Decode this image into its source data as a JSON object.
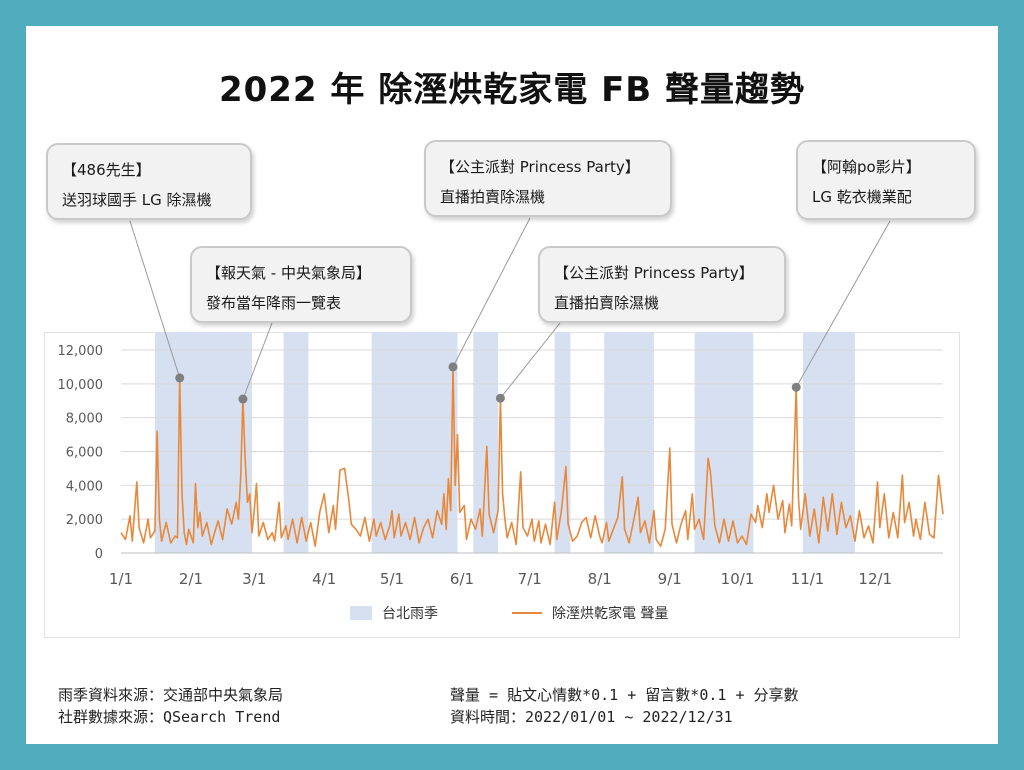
{
  "title": "2022 年 除溼烘乾家電 FB 聲量趨勢",
  "callouts": [
    {
      "line1": "【486先生】",
      "line2": "送羽球國手 LG 除濕機",
      "date": "2022-01-27",
      "value": 10350
    },
    {
      "line1": "【報天氣 - 中央氣象局】",
      "line2": "發布當年降雨一覽表",
      "date": "2022-02-24",
      "value": 9100
    },
    {
      "line1": "【公主派對 Princess Party】",
      "line2": "直播拍賣除濕機",
      "date": "2022-05-28",
      "value": 11000
    },
    {
      "line1": "【公主派對 Princess Party】",
      "line2": "直播拍賣除濕機",
      "date": "2022-06-18",
      "value": 9150
    },
    {
      "line1": "【阿翰po影片】",
      "line2": "LG 乾衣機業配",
      "date": "2022-10-27",
      "value": 9800
    }
  ],
  "legend": {
    "rain": "台北雨季",
    "volume": "除溼烘乾家電 聲量"
  },
  "footer": {
    "left1": "雨季資料來源：交通部中央氣象局",
    "left2": "社群數據來源：QSearch Trend",
    "right1": "聲量 = 貼文心情數*0.1 + 留言數*0.1 + 分享數",
    "right2": "資料時間：2022/01/01 ~ 2022/12/31"
  },
  "colors": {
    "line": "#e8883a",
    "rain": "#d6e0f1",
    "marker": "#7f7f7f",
    "frame": "#4fadbe"
  },
  "chart_data": {
    "type": "line",
    "x_range": [
      "2022-01-01",
      "2022-12-31"
    ],
    "ylim": [
      0,
      12000
    ],
    "y_ticks": [
      0,
      2000,
      4000,
      6000,
      8000,
      10000,
      12000
    ],
    "y_tick_labels": [
      "0",
      "2,000",
      "4,000",
      "6,000",
      "8,000",
      "10,000",
      "12,000"
    ],
    "x_ticks": [
      "2022-01-01",
      "2022-02-01",
      "2022-03-01",
      "2022-04-01",
      "2022-05-01",
      "2022-06-01",
      "2022-07-01",
      "2022-08-01",
      "2022-09-01",
      "2022-10-01",
      "2022-11-01",
      "2022-12-01"
    ],
    "x_tick_labels": [
      "1/1",
      "2/1",
      "3/1",
      "4/1",
      "5/1",
      "6/1",
      "7/1",
      "8/1",
      "9/1",
      "10/1",
      "11/1",
      "12/1"
    ],
    "grid": true,
    "legend_position": "bottom",
    "rain_periods": [
      [
        "2022-01-16",
        "2022-02-28"
      ],
      [
        "2022-03-14",
        "2022-03-25"
      ],
      [
        "2022-04-22",
        "2022-05-30"
      ],
      [
        "2022-06-06",
        "2022-06-17"
      ],
      [
        "2022-07-12",
        "2022-07-19"
      ],
      [
        "2022-08-03",
        "2022-08-25"
      ],
      [
        "2022-09-12",
        "2022-10-08"
      ],
      [
        "2022-10-30",
        "2022-11-22"
      ]
    ],
    "series": [
      {
        "name": "除溼烘乾家電 聲量",
        "points": [
          [
            "2022-01-01",
            1200
          ],
          [
            "2022-01-03",
            800
          ],
          [
            "2022-01-05",
            2200
          ],
          [
            "2022-01-06",
            700
          ],
          [
            "2022-01-08",
            4200
          ],
          [
            "2022-01-09",
            1500
          ],
          [
            "2022-01-11",
            600
          ],
          [
            "2022-01-13",
            2000
          ],
          [
            "2022-01-14",
            900
          ],
          [
            "2022-01-16",
            1300
          ],
          [
            "2022-01-17",
            7200
          ],
          [
            "2022-01-18",
            2000
          ],
          [
            "2022-01-19",
            700
          ],
          [
            "2022-01-21",
            1800
          ],
          [
            "2022-01-23",
            600
          ],
          [
            "2022-01-25",
            1000
          ],
          [
            "2022-01-26",
            900
          ],
          [
            "2022-01-27",
            10350
          ],
          [
            "2022-01-28",
            3500
          ],
          [
            "2022-01-29",
            1200
          ],
          [
            "2022-01-30",
            500
          ],
          [
            "2022-01-31",
            1400
          ],
          [
            "2022-02-02",
            600
          ],
          [
            "2022-02-03",
            4100
          ],
          [
            "2022-02-04",
            1500
          ],
          [
            "2022-02-05",
            2400
          ],
          [
            "2022-02-06",
            1000
          ],
          [
            "2022-02-08",
            1800
          ],
          [
            "2022-02-10",
            500
          ],
          [
            "2022-02-11",
            1000
          ],
          [
            "2022-02-13",
            1900
          ],
          [
            "2022-02-15",
            800
          ],
          [
            "2022-02-17",
            2600
          ],
          [
            "2022-02-19",
            1700
          ],
          [
            "2022-02-21",
            3000
          ],
          [
            "2022-02-22",
            2000
          ],
          [
            "2022-02-23",
            4500
          ],
          [
            "2022-02-24",
            9100
          ],
          [
            "2022-02-25",
            5500
          ],
          [
            "2022-02-26",
            3000
          ],
          [
            "2022-02-27",
            3500
          ],
          [
            "2022-02-28",
            1200
          ],
          [
            "2022-03-01",
            2500
          ],
          [
            "2022-03-02",
            4100
          ],
          [
            "2022-03-03",
            1000
          ],
          [
            "2022-03-05",
            1800
          ],
          [
            "2022-03-07",
            800
          ],
          [
            "2022-03-09",
            1200
          ],
          [
            "2022-03-10",
            700
          ],
          [
            "2022-03-12",
            3000
          ],
          [
            "2022-03-13",
            900
          ],
          [
            "2022-03-15",
            1600
          ],
          [
            "2022-03-16",
            800
          ],
          [
            "2022-03-18",
            2000
          ],
          [
            "2022-03-20",
            600
          ],
          [
            "2022-03-22",
            2100
          ],
          [
            "2022-03-24",
            700
          ],
          [
            "2022-03-26",
            1800
          ],
          [
            "2022-03-28",
            400
          ],
          [
            "2022-03-30",
            2400
          ],
          [
            "2022-04-01",
            3500
          ],
          [
            "2022-04-03",
            1200
          ],
          [
            "2022-04-05",
            2800
          ],
          [
            "2022-04-06",
            1400
          ],
          [
            "2022-04-08",
            4900
          ],
          [
            "2022-04-10",
            5000
          ],
          [
            "2022-04-12",
            3000
          ],
          [
            "2022-04-13",
            1700
          ],
          [
            "2022-04-15",
            1400
          ],
          [
            "2022-04-17",
            1000
          ],
          [
            "2022-04-19",
            2100
          ],
          [
            "2022-04-21",
            700
          ],
          [
            "2022-04-23",
            2000
          ],
          [
            "2022-04-24",
            1000
          ],
          [
            "2022-04-26",
            1800
          ],
          [
            "2022-04-28",
            800
          ],
          [
            "2022-04-30",
            1600
          ],
          [
            "2022-05-01",
            2500
          ],
          [
            "2022-05-02",
            900
          ],
          [
            "2022-05-04",
            2300
          ],
          [
            "2022-05-05",
            1000
          ],
          [
            "2022-05-07",
            1800
          ],
          [
            "2022-05-09",
            800
          ],
          [
            "2022-05-11",
            2100
          ],
          [
            "2022-05-13",
            600
          ],
          [
            "2022-05-15",
            1500
          ],
          [
            "2022-05-17",
            2000
          ],
          [
            "2022-05-19",
            900
          ],
          [
            "2022-05-21",
            2500
          ],
          [
            "2022-05-23",
            1700
          ],
          [
            "2022-05-24",
            3500
          ],
          [
            "2022-05-25",
            1400
          ],
          [
            "2022-05-26",
            4400
          ],
          [
            "2022-05-27",
            2500
          ],
          [
            "2022-05-28",
            11000
          ],
          [
            "2022-05-29",
            4000
          ],
          [
            "2022-05-30",
            7000
          ],
          [
            "2022-05-31",
            2400
          ],
          [
            "2022-06-02",
            2800
          ],
          [
            "2022-06-03",
            800
          ],
          [
            "2022-06-05",
            2000
          ],
          [
            "2022-06-07",
            1400
          ],
          [
            "2022-06-09",
            2600
          ],
          [
            "2022-06-10",
            1000
          ],
          [
            "2022-06-12",
            6300
          ],
          [
            "2022-06-13",
            2300
          ],
          [
            "2022-06-15",
            1200
          ],
          [
            "2022-06-17",
            2500
          ],
          [
            "2022-06-18",
            9150
          ],
          [
            "2022-06-19",
            3500
          ],
          [
            "2022-06-20",
            2000
          ],
          [
            "2022-06-21",
            900
          ],
          [
            "2022-06-23",
            1800
          ],
          [
            "2022-06-25",
            500
          ],
          [
            "2022-06-27",
            4800
          ],
          [
            "2022-06-28",
            1500
          ],
          [
            "2022-06-30",
            1000
          ],
          [
            "2022-07-02",
            2000
          ],
          [
            "2022-07-03",
            700
          ],
          [
            "2022-07-05",
            1900
          ],
          [
            "2022-07-06",
            600
          ],
          [
            "2022-07-08",
            1700
          ],
          [
            "2022-07-10",
            500
          ],
          [
            "2022-07-12",
            3000
          ],
          [
            "2022-07-13",
            800
          ],
          [
            "2022-07-15",
            2500
          ],
          [
            "2022-07-17",
            5100
          ],
          [
            "2022-07-18",
            1700
          ],
          [
            "2022-07-20",
            700
          ],
          [
            "2022-07-22",
            1000
          ],
          [
            "2022-07-24",
            1800
          ],
          [
            "2022-07-26",
            2100
          ],
          [
            "2022-07-28",
            900
          ],
          [
            "2022-07-30",
            2200
          ],
          [
            "2022-08-01",
            1000
          ],
          [
            "2022-08-02",
            600
          ],
          [
            "2022-08-04",
            1800
          ],
          [
            "2022-08-05",
            700
          ],
          [
            "2022-08-07",
            1400
          ],
          [
            "2022-08-09",
            2100
          ],
          [
            "2022-08-11",
            4500
          ],
          [
            "2022-08-12",
            1400
          ],
          [
            "2022-08-14",
            600
          ],
          [
            "2022-08-16",
            1900
          ],
          [
            "2022-08-18",
            3300
          ],
          [
            "2022-08-19",
            1200
          ],
          [
            "2022-08-21",
            1900
          ],
          [
            "2022-08-23",
            600
          ],
          [
            "2022-08-25",
            2500
          ],
          [
            "2022-08-26",
            800
          ],
          [
            "2022-08-28",
            400
          ],
          [
            "2022-08-30",
            1400
          ],
          [
            "2022-09-01",
            6200
          ],
          [
            "2022-09-02",
            1700
          ],
          [
            "2022-09-04",
            600
          ],
          [
            "2022-09-06",
            1700
          ],
          [
            "2022-09-08",
            2500
          ],
          [
            "2022-09-09",
            800
          ],
          [
            "2022-09-11",
            3500
          ],
          [
            "2022-09-12",
            1400
          ],
          [
            "2022-09-14",
            2000
          ],
          [
            "2022-09-16",
            800
          ],
          [
            "2022-09-18",
            5600
          ],
          [
            "2022-09-19",
            4800
          ],
          [
            "2022-09-21",
            1600
          ],
          [
            "2022-09-23",
            600
          ],
          [
            "2022-09-25",
            2000
          ],
          [
            "2022-09-27",
            700
          ],
          [
            "2022-09-29",
            1900
          ],
          [
            "2022-10-01",
            600
          ],
          [
            "2022-10-03",
            1000
          ],
          [
            "2022-10-05",
            500
          ],
          [
            "2022-10-07",
            2300
          ],
          [
            "2022-10-09",
            1800
          ],
          [
            "2022-10-10",
            2800
          ],
          [
            "2022-10-12",
            1500
          ],
          [
            "2022-10-14",
            3500
          ],
          [
            "2022-10-15",
            2400
          ],
          [
            "2022-10-17",
            4000
          ],
          [
            "2022-10-19",
            2000
          ],
          [
            "2022-10-21",
            3100
          ],
          [
            "2022-10-22",
            1200
          ],
          [
            "2022-10-24",
            2900
          ],
          [
            "2022-10-25",
            1600
          ],
          [
            "2022-10-27",
            9800
          ],
          [
            "2022-10-28",
            3200
          ],
          [
            "2022-10-29",
            1400
          ],
          [
            "2022-10-31",
            3500
          ],
          [
            "2022-11-02",
            1000
          ],
          [
            "2022-11-04",
            2600
          ],
          [
            "2022-11-06",
            600
          ],
          [
            "2022-11-08",
            3300
          ],
          [
            "2022-11-10",
            1300
          ],
          [
            "2022-11-12",
            3500
          ],
          [
            "2022-11-14",
            1100
          ],
          [
            "2022-11-16",
            3000
          ],
          [
            "2022-11-18",
            1500
          ],
          [
            "2022-11-20",
            2200
          ],
          [
            "2022-11-22",
            700
          ],
          [
            "2022-11-24",
            2500
          ],
          [
            "2022-11-26",
            900
          ],
          [
            "2022-11-28",
            1600
          ],
          [
            "2022-11-30",
            600
          ],
          [
            "2022-12-02",
            4200
          ],
          [
            "2022-12-03",
            1500
          ],
          [
            "2022-12-05",
            3500
          ],
          [
            "2022-12-07",
            900
          ],
          [
            "2022-12-09",
            2400
          ],
          [
            "2022-12-11",
            900
          ],
          [
            "2022-12-13",
            4600
          ],
          [
            "2022-12-14",
            1800
          ],
          [
            "2022-12-16",
            3000
          ],
          [
            "2022-12-18",
            1000
          ],
          [
            "2022-12-19",
            2000
          ],
          [
            "2022-12-21",
            800
          ],
          [
            "2022-12-23",
            3000
          ],
          [
            "2022-12-25",
            1100
          ],
          [
            "2022-12-27",
            900
          ],
          [
            "2022-12-29",
            4600
          ],
          [
            "2022-12-31",
            2300
          ]
        ]
      }
    ]
  }
}
